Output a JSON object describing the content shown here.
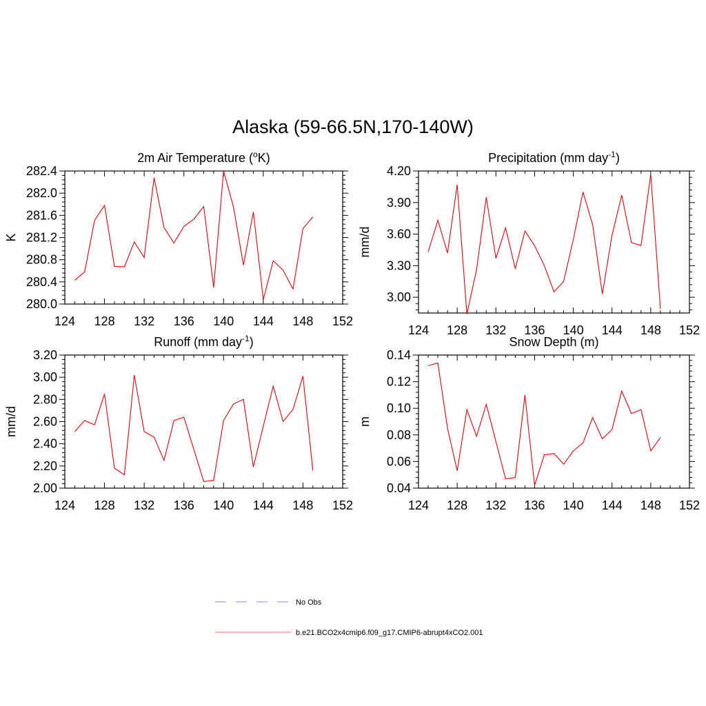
{
  "figure": {
    "title": "Alaska (59-66.5N,170-140W)"
  },
  "chart_data": [
    {
      "type": "line",
      "title": "2m Air Temperature (°K)",
      "title_main": "2m Air Temperature (",
      "title_sup": "o",
      "title_tail": "K)",
      "ylabel": "K",
      "xlim": [
        124,
        152
      ],
      "ylim": [
        280.0,
        282.4
      ],
      "xticks": [
        "124",
        "128",
        "132",
        "136",
        "140",
        "144",
        "148",
        "152"
      ],
      "yticks": [
        "280.0",
        "280.4",
        "280.8",
        "281.2",
        "281.6",
        "282.0",
        "282.4"
      ],
      "series": [
        {
          "color": "#e8000b",
          "x": [
            125,
            126,
            127,
            128,
            129,
            130,
            131,
            132,
            133,
            134,
            135,
            136,
            137,
            138,
            139,
            140,
            141,
            142,
            143,
            144,
            145,
            146,
            147,
            148,
            149
          ],
          "y": [
            280.43,
            280.58,
            281.51,
            281.78,
            280.68,
            280.67,
            281.12,
            280.84,
            282.28,
            281.38,
            281.1,
            281.4,
            281.53,
            281.76,
            280.3,
            282.4,
            281.75,
            280.7,
            281.66,
            280.08,
            280.78,
            280.61,
            280.27,
            281.36,
            281.57
          ]
        }
      ]
    },
    {
      "type": "line",
      "title": "Precipitation (mm day-1)",
      "title_main": "Precipitation (mm day",
      "title_sup": "-1",
      "title_tail": ")",
      "ylabel": "mm/d",
      "xlim": [
        124,
        152
      ],
      "ylim": [
        2.85,
        4.2
      ],
      "xticks": [
        "124",
        "128",
        "132",
        "136",
        "140",
        "144",
        "148",
        "152"
      ],
      "yticks": [
        "3.00",
        "3.30",
        "3.60",
        "3.90",
        "4.20"
      ],
      "series": [
        {
          "color": "#e8000b",
          "x": [
            125,
            126,
            127,
            128,
            129,
            130,
            131,
            132,
            133,
            134,
            135,
            136,
            137,
            138,
            139,
            140,
            141,
            142,
            143,
            144,
            145,
            146,
            147,
            148,
            149
          ],
          "y": [
            3.43,
            3.73,
            3.42,
            4.07,
            2.84,
            3.26,
            3.95,
            3.37,
            3.66,
            3.27,
            3.63,
            3.49,
            3.3,
            3.05,
            3.15,
            3.55,
            4.0,
            3.69,
            3.03,
            3.59,
            3.97,
            3.52,
            3.49,
            4.17,
            2.89
          ]
        }
      ]
    },
    {
      "type": "line",
      "title": "Runoff (mm day-1)",
      "title_main": "Runoff (mm day",
      "title_sup": "-1",
      "title_tail": ")",
      "ylabel": "mm/d",
      "xlim": [
        124,
        152
      ],
      "ylim": [
        2.0,
        3.2
      ],
      "xticks": [
        "124",
        "128",
        "132",
        "136",
        "140",
        "144",
        "148",
        "152"
      ],
      "yticks": [
        "2.00",
        "2.20",
        "2.40",
        "2.60",
        "2.80",
        "3.00",
        "3.20"
      ],
      "series": [
        {
          "color": "#e8000b",
          "x": [
            125,
            126,
            127,
            128,
            129,
            130,
            131,
            132,
            133,
            134,
            135,
            136,
            137,
            138,
            139,
            140,
            141,
            142,
            143,
            144,
            145,
            146,
            147,
            148,
            149
          ],
          "y": [
            2.51,
            2.61,
            2.57,
            2.85,
            2.18,
            2.12,
            3.02,
            2.51,
            2.46,
            2.25,
            2.61,
            2.64,
            2.35,
            2.06,
            2.07,
            2.61,
            2.76,
            2.8,
            2.19,
            2.56,
            2.92,
            2.6,
            2.71,
            3.01,
            2.16
          ]
        }
      ]
    },
    {
      "type": "line",
      "title": "Snow Depth (m)",
      "title_main": "Snow Depth (m)",
      "title_sup": "",
      "title_tail": "",
      "ylabel": "m",
      "xlim": [
        124,
        152
      ],
      "ylim": [
        0.04,
        0.14
      ],
      "xticks": [
        "124",
        "128",
        "132",
        "136",
        "140",
        "144",
        "148",
        "152"
      ],
      "yticks": [
        "0.04",
        "0.06",
        "0.08",
        "0.10",
        "0.12",
        "0.14"
      ],
      "series": [
        {
          "color": "#e8000b",
          "x": [
            125,
            126,
            127,
            128,
            129,
            130,
            131,
            132,
            133,
            134,
            135,
            136,
            137,
            138,
            139,
            140,
            141,
            142,
            143,
            144,
            145,
            146,
            147,
            148,
            149
          ],
          "y": [
            0.132,
            0.134,
            0.085,
            0.053,
            0.099,
            0.079,
            0.103,
            0.075,
            0.047,
            0.048,
            0.11,
            0.042,
            0.065,
            0.066,
            0.058,
            0.068,
            0.074,
            0.093,
            0.077,
            0.084,
            0.113,
            0.096,
            0.099,
            0.068,
            0.078
          ]
        }
      ]
    }
  ],
  "legend": [
    {
      "label": "No Obs",
      "color": "#9999ff",
      "dash": "dashed"
    },
    {
      "label": "b.e21.BCO2x4cmip6.f09_g17.CMIP6-abrupt4xCO2.001",
      "color": "#ff8888",
      "dash": "solid"
    }
  ]
}
